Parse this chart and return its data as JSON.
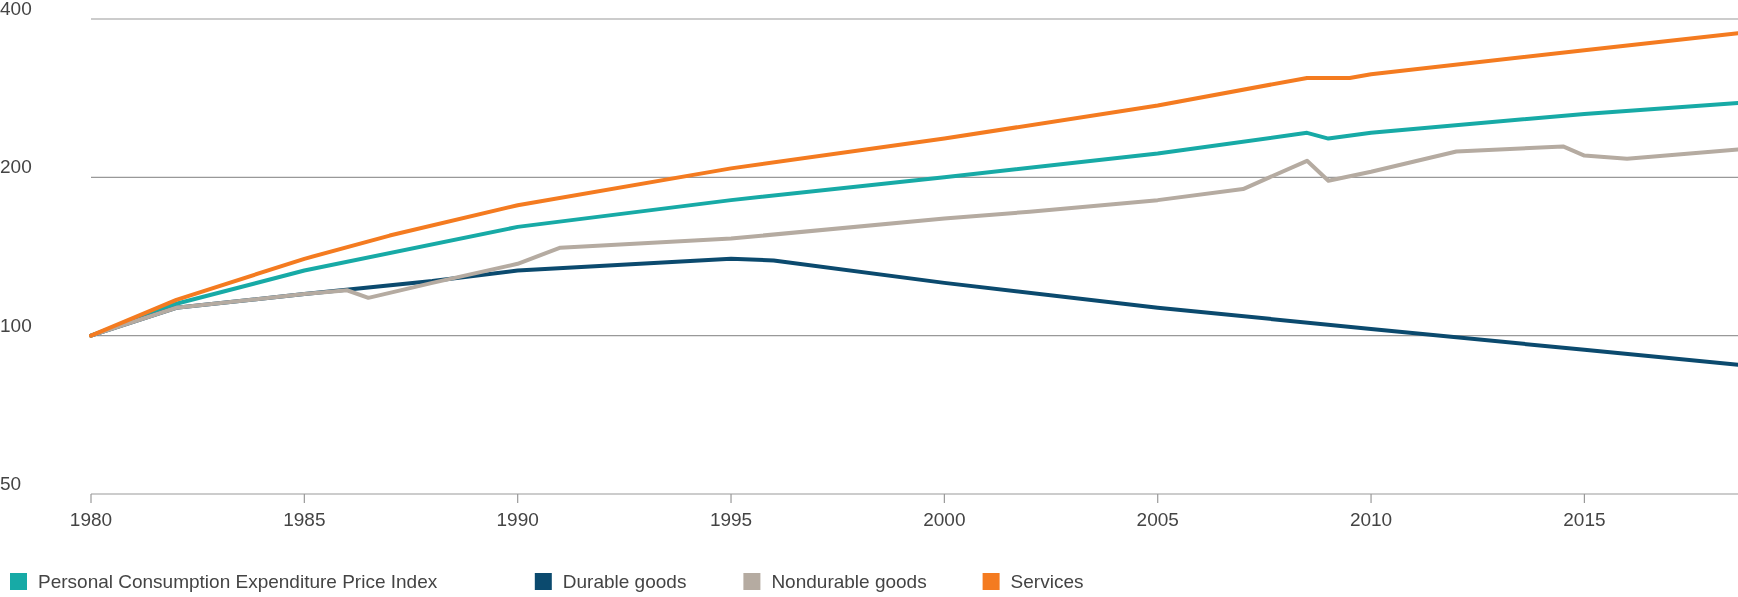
{
  "chart_data": {
    "type": "line",
    "log": "y",
    "grid": "y",
    "legend": "bottom",
    "xlim": [
      1980,
      2018.6
    ],
    "xticks": [
      1980,
      1985,
      1990,
      1995,
      2000,
      2005,
      2010,
      2015
    ],
    "ylim": [
      50,
      400
    ],
    "yticks": [
      50,
      100,
      200,
      400
    ],
    "series": [
      {
        "name": "Personal Consumption Expenditure Price Index",
        "color": "#17aaa6",
        "x": [
          1980,
          1982,
          1985,
          1990,
          1995,
          2000,
          2005,
          2008.5,
          2009,
          2010,
          2015,
          2018.6
        ],
        "values": [
          100,
          115,
          133,
          161,
          181,
          200,
          222,
          243,
          237,
          243,
          264,
          277
        ]
      },
      {
        "name": "Durable goods",
        "color": "#0b4a6e",
        "x": [
          1980,
          1982,
          1985,
          1988,
          1990,
          1995,
          1996,
          2000,
          2005,
          2010,
          2015,
          2018.6
        ],
        "values": [
          100,
          113,
          120,
          127,
          133,
          140,
          139,
          126,
          113,
          103,
          94,
          88
        ]
      },
      {
        "name": "Nondurable goods",
        "color": "#b5aba1",
        "x": [
          1980,
          1982,
          1985,
          1986,
          1986.5,
          1988,
          1990,
          1991,
          1995,
          2000,
          2002,
          2005,
          2007,
          2008.5,
          2009,
          2010,
          2012,
          2014.5,
          2015,
          2016,
          2018.6
        ],
        "values": [
          100,
          113,
          120,
          122,
          118,
          126,
          137,
          147,
          153,
          167,
          172,
          181,
          190,
          215,
          197,
          205,
          224,
          229,
          220,
          217,
          226
        ]
      },
      {
        "name": "Services",
        "color": "#f47b20",
        "x": [
          1980,
          1982,
          1985,
          1987,
          1990,
          1995,
          2000,
          2005,
          2008.5,
          2009.5,
          2010,
          2015,
          2018.6
        ],
        "values": [
          100,
          117,
          140,
          155,
          177,
          208,
          237,
          274,
          309,
          309,
          314,
          349,
          376
        ]
      }
    ]
  }
}
